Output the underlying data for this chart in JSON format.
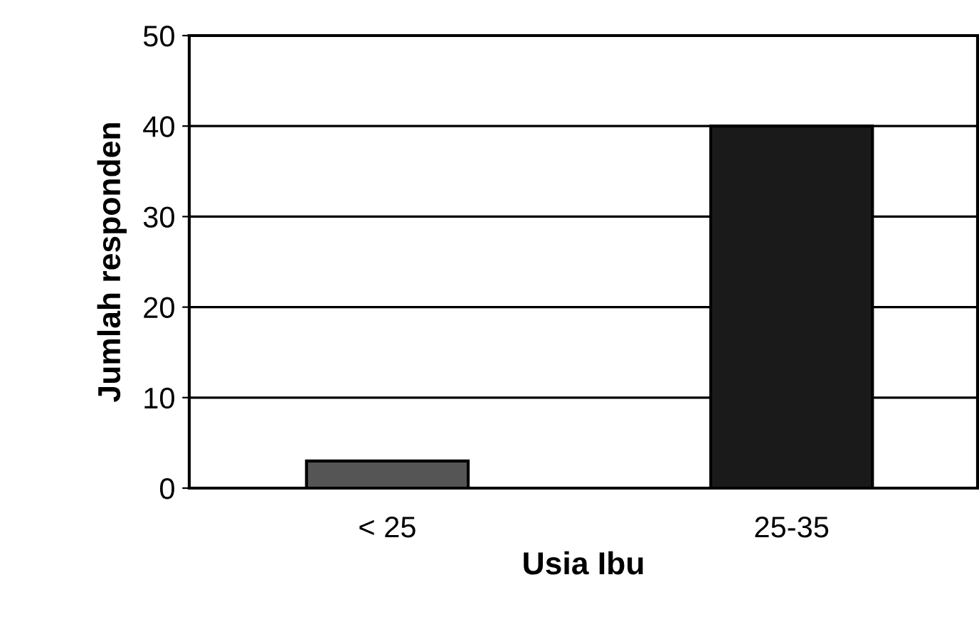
{
  "chart_data": {
    "type": "bar",
    "xlabel": "Usia Ibu",
    "ylabel": "Jumlah responden",
    "categories": [
      "< 25",
      "25-35"
    ],
    "values": [
      3,
      40
    ],
    "colors": [
      "#555555",
      "#1a1a1a"
    ],
    "ylim": [
      0,
      50
    ],
    "yticks": [
      0,
      10,
      20,
      30,
      40,
      50
    ],
    "grid": "y"
  }
}
